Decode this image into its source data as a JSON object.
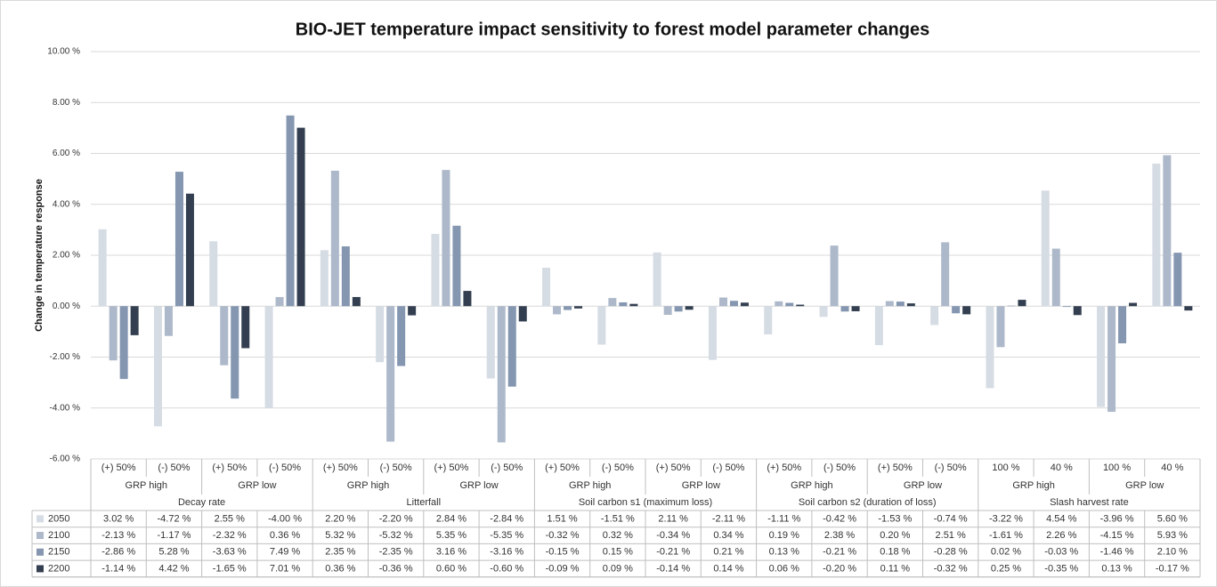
{
  "chart_data": {
    "type": "bar",
    "title": "BIO-JET temperature impact sensitivity to forest model parameter changes",
    "y_label": "Change in temperature response",
    "groups": [
      {
        "name": "Decay rate",
        "subgroups": [
          {
            "name": "GRP high",
            "categories": [
              "(+) 50%",
              "(-) 50%"
            ]
          },
          {
            "name": "GRP low",
            "categories": [
              "(+) 50%",
              "(-) 50%"
            ]
          }
        ]
      },
      {
        "name": "Litterfall",
        "subgroups": [
          {
            "name": "GRP high",
            "categories": [
              "(+) 50%",
              "(-) 50%"
            ]
          },
          {
            "name": "GRP low",
            "categories": [
              "(+) 50%",
              "(-) 50%"
            ]
          }
        ]
      },
      {
        "name": "Soil carbon s1 (maximum loss)",
        "subgroups": [
          {
            "name": "GRP high",
            "categories": [
              "(+) 50%",
              "(-) 50%"
            ]
          },
          {
            "name": "GRP low",
            "categories": [
              "(+) 50%",
              "(-) 50%"
            ]
          }
        ]
      },
      {
        "name": "Soil carbon s2 (duration of loss)",
        "subgroups": [
          {
            "name": "GRP high",
            "categories": [
              "(+) 50%",
              "(-) 50%"
            ]
          },
          {
            "name": "GRP low",
            "categories": [
              "(+) 50%",
              "(-) 50%"
            ]
          }
        ]
      },
      {
        "name": "Slash harvest rate",
        "subgroups": [
          {
            "name": "GRP high",
            "categories": [
              "100 %",
              "40 %"
            ]
          },
          {
            "name": "GRP low",
            "categories": [
              "100 %",
              "40 %"
            ]
          }
        ]
      }
    ],
    "series": [
      {
        "name": "2050",
        "color": "#d6dce4",
        "values": [
          3.02,
          -4.72,
          2.55,
          -4.0,
          2.2,
          -2.2,
          2.84,
          -2.84,
          1.51,
          -1.51,
          2.11,
          -2.11,
          -1.11,
          -0.42,
          -1.53,
          -0.74,
          -3.22,
          4.54,
          -3.96,
          5.6
        ],
        "value_labels": [
          "3.02 %",
          "-4.72 %",
          "2.55 %",
          "-4.00 %",
          "2.20 %",
          "-2.20 %",
          "2.84 %",
          "-2.84 %",
          "1.51 %",
          "-1.51 %",
          "2.11 %",
          "-2.11 %",
          "-1.11 %",
          "-0.42 %",
          "-1.53 %",
          "-0.74 %",
          "-3.22 %",
          "4.54 %",
          "-3.96 %",
          "5.60 %"
        ]
      },
      {
        "name": "2100",
        "color": "#adb9ca",
        "values": [
          -2.13,
          -1.17,
          -2.32,
          0.36,
          5.32,
          -5.32,
          5.35,
          -5.35,
          -0.32,
          0.32,
          -0.34,
          0.34,
          0.19,
          2.38,
          0.2,
          2.51,
          -1.61,
          2.26,
          -4.15,
          5.93
        ],
        "value_labels": [
          "-2.13 %",
          "-1.17 %",
          "-2.32 %",
          "0.36 %",
          "5.32 %",
          "-5.32 %",
          "5.35 %",
          "-5.35 %",
          "-0.32 %",
          "0.32 %",
          "-0.34 %",
          "0.34 %",
          "0.19 %",
          "2.38 %",
          "0.20 %",
          "2.51 %",
          "-1.61 %",
          "2.26 %",
          "-4.15 %",
          "5.93 %"
        ]
      },
      {
        "name": "2150",
        "color": "#8496b0",
        "values": [
          -2.86,
          5.28,
          -3.63,
          7.49,
          2.35,
          -2.35,
          3.16,
          -3.16,
          -0.15,
          0.15,
          -0.21,
          0.21,
          0.13,
          -0.21,
          0.18,
          -0.28,
          0.02,
          -0.03,
          -1.46,
          2.1
        ],
        "value_labels": [
          "-2.86 %",
          "5.28 %",
          "-3.63 %",
          "7.49 %",
          "2.35 %",
          "-2.35 %",
          "3.16 %",
          "-3.16 %",
          "-0.15 %",
          "0.15 %",
          "-0.21 %",
          "0.21 %",
          "0.13 %",
          "-0.21 %",
          "0.18 %",
          "-0.28 %",
          "0.02 %",
          "-0.03 %",
          "-1.46 %",
          "2.10 %"
        ]
      },
      {
        "name": "2200",
        "color": "#333f50",
        "values": [
          -1.14,
          4.42,
          -1.65,
          7.01,
          0.36,
          -0.36,
          0.6,
          -0.6,
          -0.09,
          0.09,
          -0.14,
          0.14,
          0.06,
          -0.2,
          0.11,
          -0.32,
          0.25,
          -0.35,
          0.13,
          -0.17
        ],
        "value_labels": [
          "-1.14 %",
          "4.42 %",
          "-1.65 %",
          "7.01 %",
          "0.36 %",
          "-0.36 %",
          "0.60 %",
          "-0.60 %",
          "-0.09 %",
          "0.09 %",
          "-0.14 %",
          "0.14 %",
          "0.06 %",
          "-0.20 %",
          "0.11 %",
          "-0.32 %",
          "0.25 %",
          "-0.35 %",
          "0.13 %",
          "-0.17 %"
        ]
      }
    ],
    "ylim": [
      -6,
      10
    ],
    "yticks": [
      {
        "value": -6,
        "label": "-6.00 %"
      },
      {
        "value": -4,
        "label": "-4.00 %"
      },
      {
        "value": -2,
        "label": "-2.00 %"
      },
      {
        "value": 0,
        "label": "0.00 %"
      },
      {
        "value": 2,
        "label": "2.00 %"
      },
      {
        "value": 4,
        "label": "4.00 %"
      },
      {
        "value": 6,
        "label": "6.00 %"
      },
      {
        "value": 8,
        "label": "8.00 %"
      },
      {
        "value": 10,
        "label": "10.00 %"
      }
    ],
    "grid": true
  }
}
